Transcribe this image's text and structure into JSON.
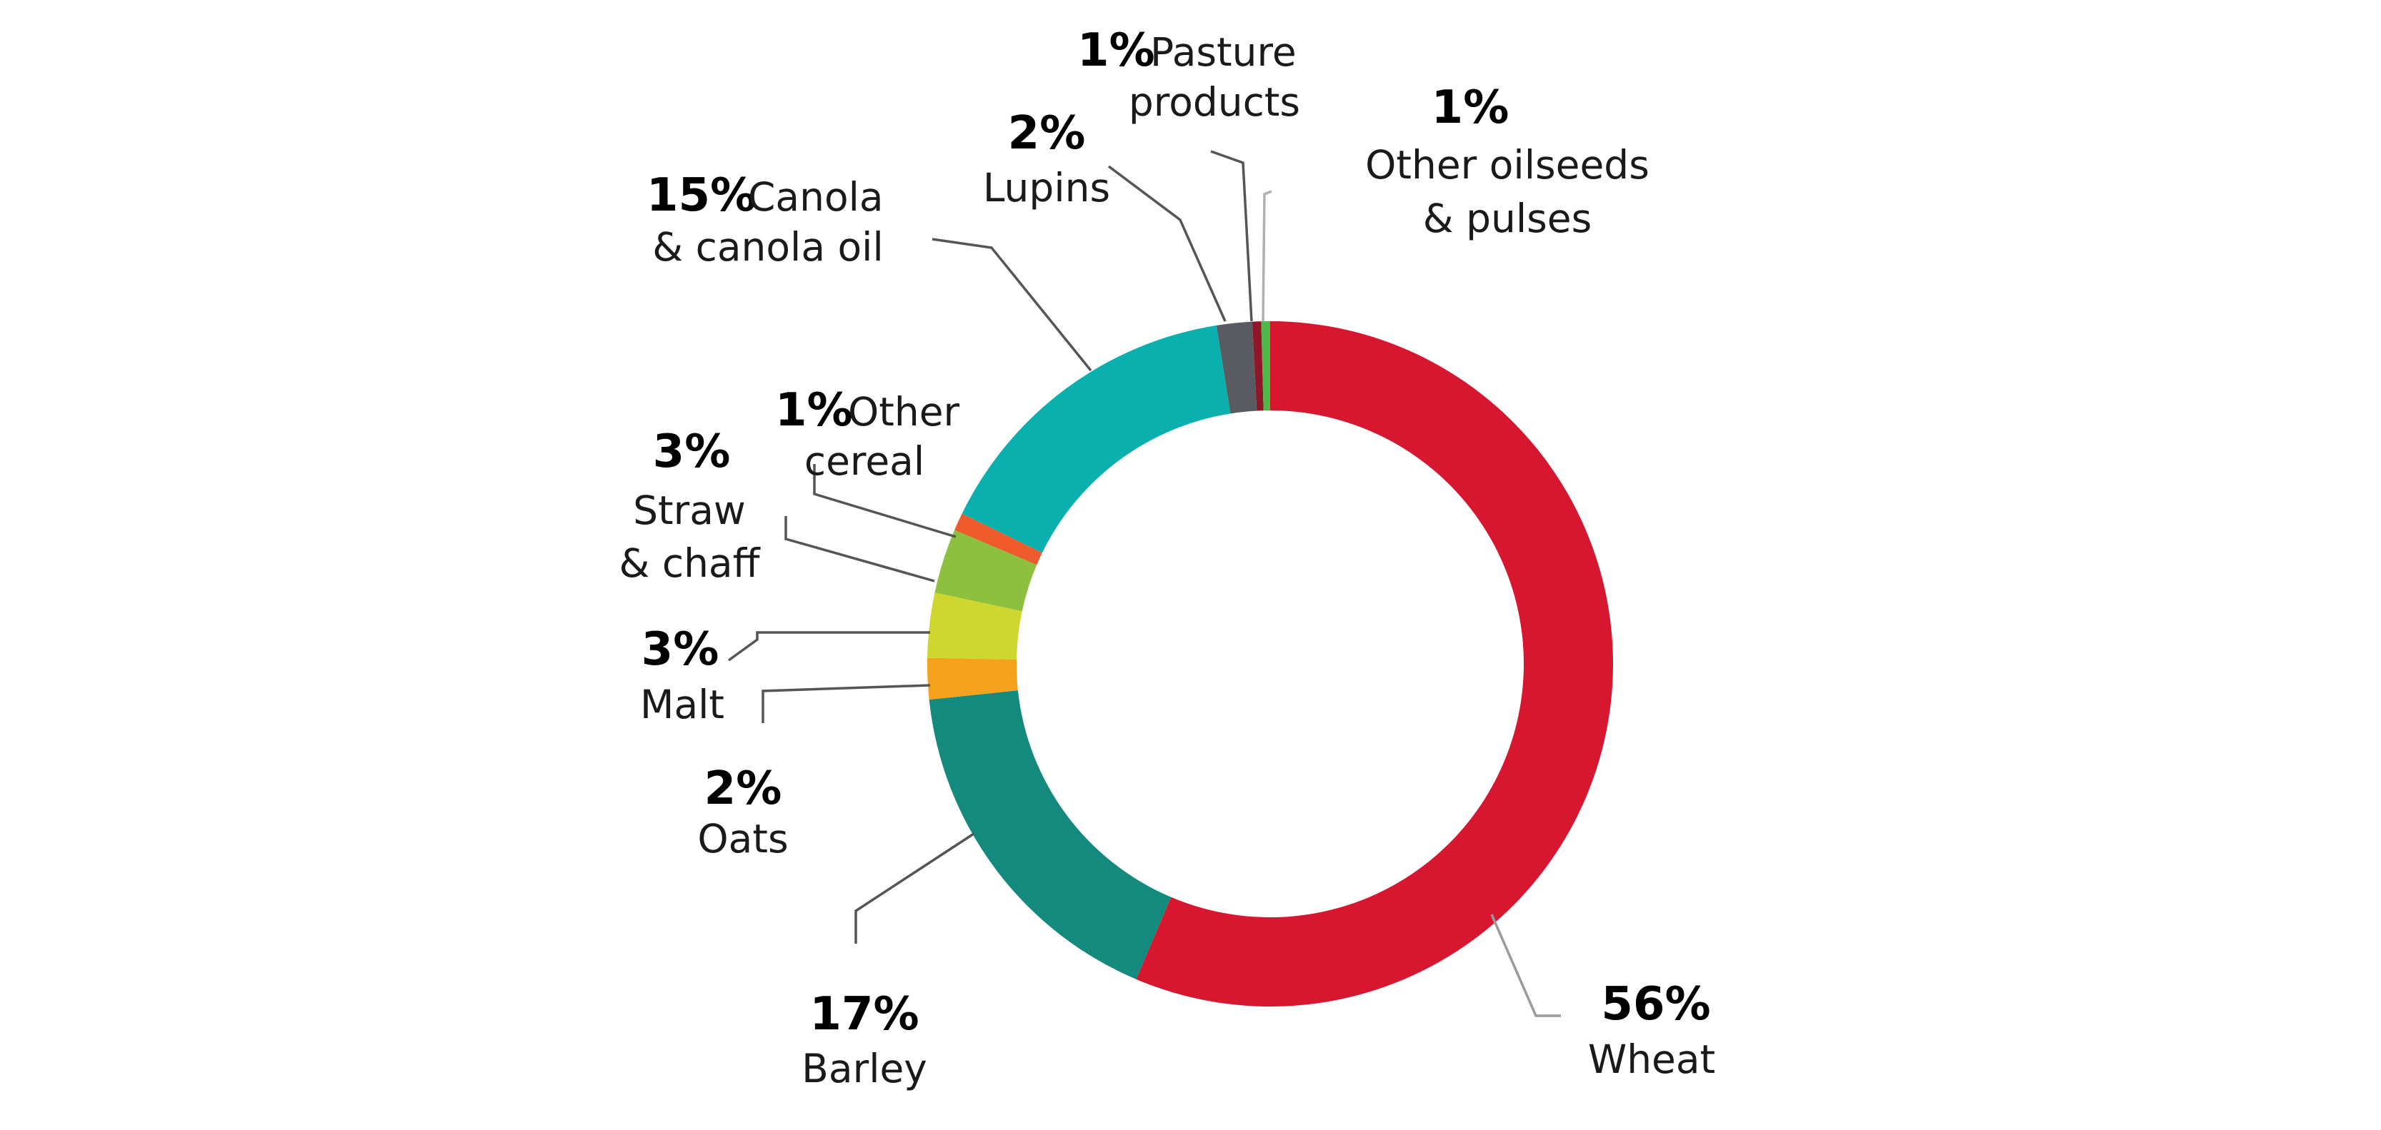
{
  "chart_data": {
    "type": "pie",
    "donut": true,
    "title": "",
    "unit": "%",
    "slices": [
      {
        "key": "wheat",
        "value": 56,
        "percent_label": "56%",
        "label_lines": [
          "Wheat"
        ],
        "color": "#d7162f",
        "leader_color": "#9a9a9a"
      },
      {
        "key": "barley",
        "value": 17,
        "percent_label": "17%",
        "label_lines": [
          "Barley"
        ],
        "color": "#148a7f",
        "leader_color": "#555555"
      },
      {
        "key": "oats",
        "value": 2,
        "percent_label": "2%",
        "label_lines": [
          "Oats"
        ],
        "color": "#f4a21d",
        "leader_color": "#555555"
      },
      {
        "key": "malt",
        "value": 3,
        "percent_label": "3%",
        "label_lines": [
          "Malt"
        ],
        "color": "#cfd72e",
        "leader_color": "#555555"
      },
      {
        "key": "straw",
        "value": 3,
        "percent_label": "3%",
        "label_lines": [
          "Straw",
          "& chaff"
        ],
        "color": "#8cc03e",
        "leader_color": "#555555"
      },
      {
        "key": "other-cereal",
        "value": 1,
        "percent_label": "1%",
        "label_lines": [
          "Other",
          "cereal"
        ],
        "color": "#ee5a2b",
        "leader_color": "#555555"
      },
      {
        "key": "canola",
        "value": 15,
        "percent_label": "15%",
        "label_lines": [
          "Canola",
          "& canola oil"
        ],
        "color": "#0ab0ad",
        "leader_color": "#555555"
      },
      {
        "key": "lupins",
        "value": 2,
        "percent_label": "2%",
        "label_lines": [
          "Lupins"
        ],
        "color": "#595b60",
        "leader_color": "#555555"
      },
      {
        "key": "pasture",
        "value": 1,
        "percent_label": "1%",
        "label_lines": [
          "Pasture",
          "products"
        ],
        "color": "#8e1626",
        "leader_color": "#555555"
      },
      {
        "key": "other-oilseeds",
        "value": 1,
        "percent_label": "1%",
        "label_lines": [
          "Other oilseeds",
          "& pulses"
        ],
        "color": "#4fb848",
        "leader_color": "#b0b0b0"
      }
    ]
  }
}
